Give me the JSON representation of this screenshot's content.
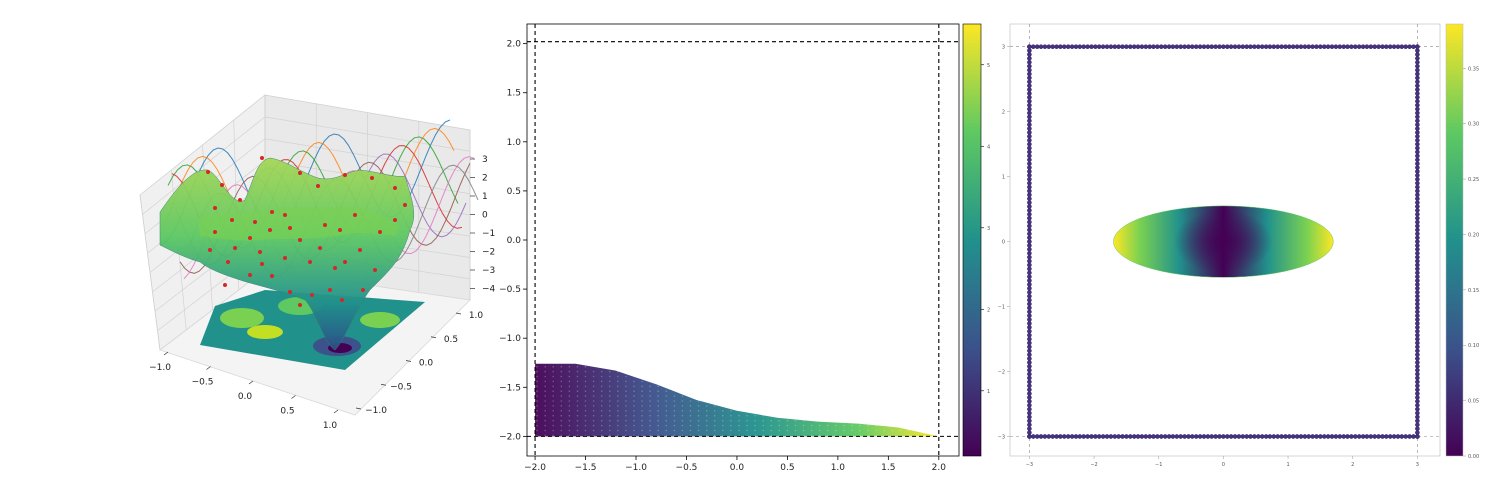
{
  "figure": {
    "panels": 3,
    "colormap": "viridis",
    "colormap_stops": [
      "#440154",
      "#3b528b",
      "#21918c",
      "#5ec962",
      "#fde725"
    ],
    "point_color": "#d62728",
    "curve_colors": [
      "#1f77b4",
      "#ff7f0e",
      "#2ca02c",
      "#d62728",
      "#9467bd",
      "#8c564b",
      "#e377c2",
      "#7f7f7f"
    ]
  },
  "chart_data": [
    {
      "type": "surface3d",
      "title": "",
      "xlabel": "",
      "ylabel": "",
      "zlabel": "",
      "x_ticks": [
        "−1.0",
        "−0.5",
        "0.0",
        "0.5",
        "1.0"
      ],
      "y_ticks": [
        "−1.0",
        "−0.5",
        "0.0",
        "0.5",
        "1.0"
      ],
      "z_ticks": [
        "3",
        "2",
        "1",
        "0",
        "−1",
        "−2",
        "−3",
        "−4"
      ],
      "xlim": [
        -1,
        1
      ],
      "ylim": [
        -1,
        1
      ],
      "zlim": [
        -4,
        3
      ],
      "filled_contour_floor": true,
      "scatter_points": "red markers on surface",
      "side_curves": "sinusoidal curves projected on back wall",
      "grid": true
    },
    {
      "type": "scatter",
      "title": "",
      "xlabel": "",
      "ylabel": "",
      "x_ticks": [
        "−2.0",
        "−1.5",
        "−1.0",
        "−0.5",
        "0.0",
        "0.5",
        "1.0",
        "1.5",
        "2.0"
      ],
      "y_ticks": [
        "2.0",
        "1.5",
        "1.0",
        "0.5",
        "0.0",
        "−0.5",
        "−1.0",
        "−1.5",
        "−2.0"
      ],
      "xlim": [
        -2.08,
        2.2
      ],
      "ylim": [
        -2.2,
        2.2
      ],
      "dashed_lines": {
        "x": [
          -2,
          2
        ],
        "y": [
          -2,
          2.02
        ]
      },
      "region": {
        "description": "points between y=-2 and upper boundary curve",
        "upper_boundary": [
          {
            "x": -2.0,
            "y": -1.26
          },
          {
            "x": -1.6,
            "y": -1.26
          },
          {
            "x": -1.2,
            "y": -1.33
          },
          {
            "x": -0.8,
            "y": -1.47
          },
          {
            "x": -0.4,
            "y": -1.63
          },
          {
            "x": 0.0,
            "y": -1.74
          },
          {
            "x": 0.4,
            "y": -1.81
          },
          {
            "x": 0.8,
            "y": -1.85
          },
          {
            "x": 1.2,
            "y": -1.87
          },
          {
            "x": 1.6,
            "y": -1.91
          },
          {
            "x": 2.0,
            "y": -2.0
          }
        ],
        "color_trend": "increases with x"
      },
      "colorbar": {
        "ticks": [
          "5",
          "4",
          "3",
          "2",
          "1"
        ],
        "range": [
          0.2,
          5.5
        ]
      },
      "grid": false
    },
    {
      "type": "scatter",
      "title": "",
      "xlabel": "",
      "ylabel": "",
      "x_ticks": [
        "−3",
        "−2",
        "−1",
        "0",
        "1",
        "2",
        "3"
      ],
      "y_ticks": [
        "3",
        "2",
        "1",
        "0",
        "−1",
        "−2",
        "−3"
      ],
      "xlim": [
        -3.3,
        3.35
      ],
      "ylim": [
        -3.3,
        3.35
      ],
      "dashed_lines": {
        "x": [
          -3,
          3
        ],
        "y": [
          -3,
          3
        ]
      },
      "boundary_square": {
        "x": [
          -3,
          3
        ],
        "y": [
          -3,
          3
        ],
        "marker_color": "#46327e"
      },
      "ellipse": {
        "center": [
          0,
          0
        ],
        "rx": 1.7,
        "ry": 0.55,
        "color_trend": "increases with |x|"
      },
      "colorbar": {
        "ticks": [
          "0.35",
          "0.30",
          "0.25",
          "0.20",
          "0.15",
          "0.10",
          "0.05",
          "0.00"
        ],
        "range": [
          0,
          0.39
        ]
      },
      "grid": false
    }
  ]
}
